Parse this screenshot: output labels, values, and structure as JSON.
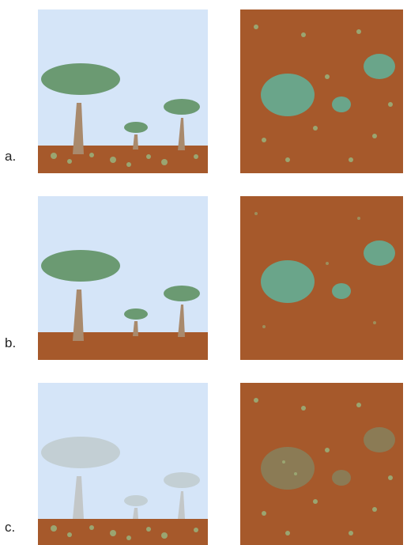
{
  "rows": [
    {
      "label": "a."
    },
    {
      "label": "b."
    },
    {
      "label": "c."
    }
  ],
  "colors": {
    "sky": "#d5e5f8",
    "soil": "#a6592b",
    "canopy": "#6b9a72",
    "trunk": "#a98a6d",
    "grass": "#9aa571",
    "top_canopy": "#6aa58a",
    "canopy_faded": "#c3cfd4",
    "trunk_faded": "#c3c7c8"
  }
}
